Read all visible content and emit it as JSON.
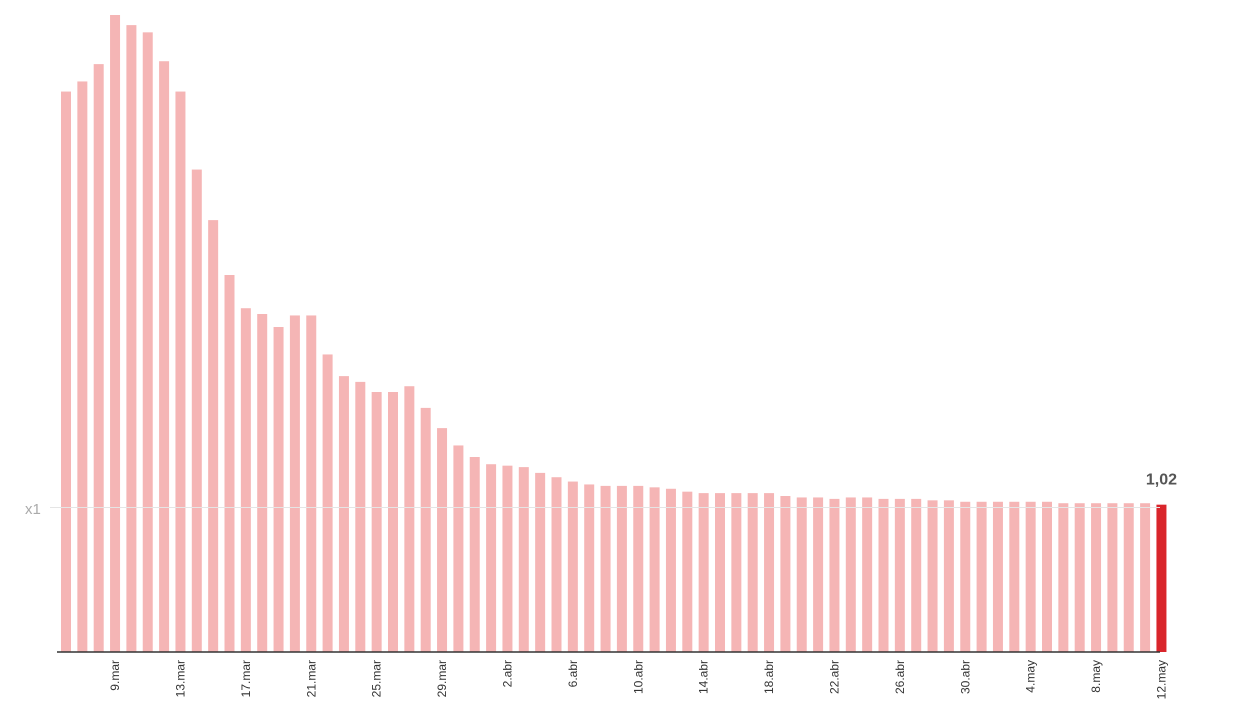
{
  "chart_data": {
    "type": "bar",
    "reference_label": "x1",
    "reference_value": 1,
    "last_value_label": "1,02",
    "x_tick_labels": [
      "9.mar",
      "13.mar",
      "17.mar",
      "21.mar",
      "25.mar",
      "29.mar",
      "2.abr",
      "6.abr",
      "10.abr",
      "14.abr",
      "18.abr",
      "22.abr",
      "26.abr",
      "30.abr",
      "4.may",
      "8.may",
      "12.may"
    ],
    "tick_start_index": 3,
    "tick_step": 4,
    "categories": [
      "6.mar",
      "7.mar",
      "8.mar",
      "9.mar",
      "10.mar",
      "11.mar",
      "12.mar",
      "13.mar",
      "14.mar",
      "15.mar",
      "16.mar",
      "17.mar",
      "18.mar",
      "19.mar",
      "20.mar",
      "21.mar",
      "22.mar",
      "23.mar",
      "24.mar",
      "25.mar",
      "26.mar",
      "27.mar",
      "28.mar",
      "29.mar",
      "30.mar",
      "31.mar",
      "1.abr",
      "2.abr",
      "3.abr",
      "4.abr",
      "5.abr",
      "6.abr",
      "7.abr",
      "8.abr",
      "9.abr",
      "10.abr",
      "11.abr",
      "12.abr",
      "13.abr",
      "14.abr",
      "15.abr",
      "16.abr",
      "17.abr",
      "18.abr",
      "19.abr",
      "20.abr",
      "21.abr",
      "22.abr",
      "23.abr",
      "24.abr",
      "25.abr",
      "26.abr",
      "27.abr",
      "28.abr",
      "29.abr",
      "30.abr",
      "1.may",
      "2.may",
      "3.may",
      "4.may",
      "5.may",
      "6.may",
      "7.may",
      "8.may",
      "9.may",
      "10.may",
      "11.may",
      "12.may"
    ],
    "values": [
      3.88,
      3.95,
      4.07,
      4.41,
      4.34,
      4.29,
      4.09,
      3.88,
      3.34,
      2.99,
      2.61,
      2.38,
      2.34,
      2.25,
      2.33,
      2.33,
      2.06,
      1.91,
      1.87,
      1.8,
      1.8,
      1.84,
      1.69,
      1.55,
      1.43,
      1.35,
      1.3,
      1.29,
      1.28,
      1.24,
      1.21,
      1.18,
      1.16,
      1.15,
      1.15,
      1.15,
      1.14,
      1.13,
      1.11,
      1.1,
      1.1,
      1.1,
      1.1,
      1.1,
      1.08,
      1.07,
      1.07,
      1.06,
      1.07,
      1.07,
      1.06,
      1.06,
      1.06,
      1.05,
      1.05,
      1.04,
      1.04,
      1.04,
      1.04,
      1.04,
      1.04,
      1.03,
      1.03,
      1.03,
      1.03,
      1.03,
      1.03,
      1.02
    ],
    "ylim": [
      0,
      4.41
    ],
    "bar_color": "#f5b5b5",
    "highlight_color": "#d9252b",
    "reference_line_color": "#e5e5e5",
    "axis_color": "#333333",
    "grid": false
  }
}
